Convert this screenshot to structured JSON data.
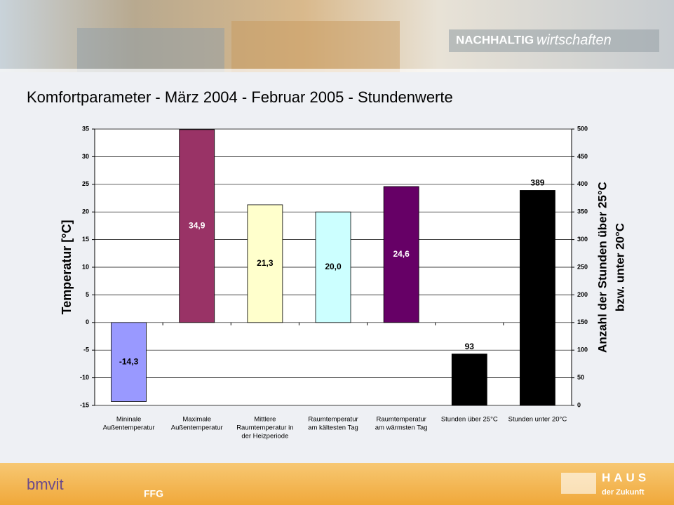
{
  "header": {
    "logo_bold": "NACHHALTIG",
    "logo_italic": "wirtschaften"
  },
  "footer": {
    "left_logo": "bmvit",
    "mid_logo": "FFG",
    "right_logo_top": "HAUS",
    "right_logo_bottom": "der Zukunft"
  },
  "chart_data": {
    "type": "bar",
    "title": "Komfortparameter - März 2004 - Februar 2005 - Stundenwerte",
    "y_label": "Temperatur [°C]",
    "y2_label": [
      "Anzahl der Stunden über 25°C",
      "bzw. unter 20°C"
    ],
    "categories": [
      [
        "Mininale",
        "Außentemperatur"
      ],
      [
        "Maximale",
        "Außentemperatur"
      ],
      [
        "Mittlere",
        "Raumtemperatur in",
        "der Heizperiode"
      ],
      [
        "Raumtemperatur",
        "am kältesten Tag"
      ],
      [
        "Raumtemperatur",
        "am wärmsten Tag"
      ],
      [
        "Stunden über 25°C"
      ],
      [
        "Stunden unter 20°C"
      ]
    ],
    "series": [
      {
        "values": [
          -14.3,
          34.9,
          21.3,
          20.0,
          24.6,
          null,
          null
        ],
        "value_labels": [
          "-14,3",
          "34,9",
          "21,3",
          "20,0",
          "24,6",
          null,
          null
        ],
        "colors": [
          "#9999ff",
          "#993366",
          "#ffffcc",
          "#ccffff",
          "#660066",
          null,
          null
        ]
      },
      {
        "axis": "y2",
        "values": [
          null,
          null,
          null,
          null,
          null,
          93,
          389
        ],
        "color": "#000000"
      }
    ],
    "ylim": [
      -15,
      35
    ],
    "yticks": [
      -15,
      -10,
      -5,
      0,
      5,
      10,
      15,
      20,
      25,
      30,
      35
    ],
    "y2lim": [
      0,
      500
    ],
    "y2ticks": [
      0,
      50,
      100,
      150,
      200,
      250,
      300,
      350,
      400,
      450,
      500
    ],
    "grid": true
  }
}
